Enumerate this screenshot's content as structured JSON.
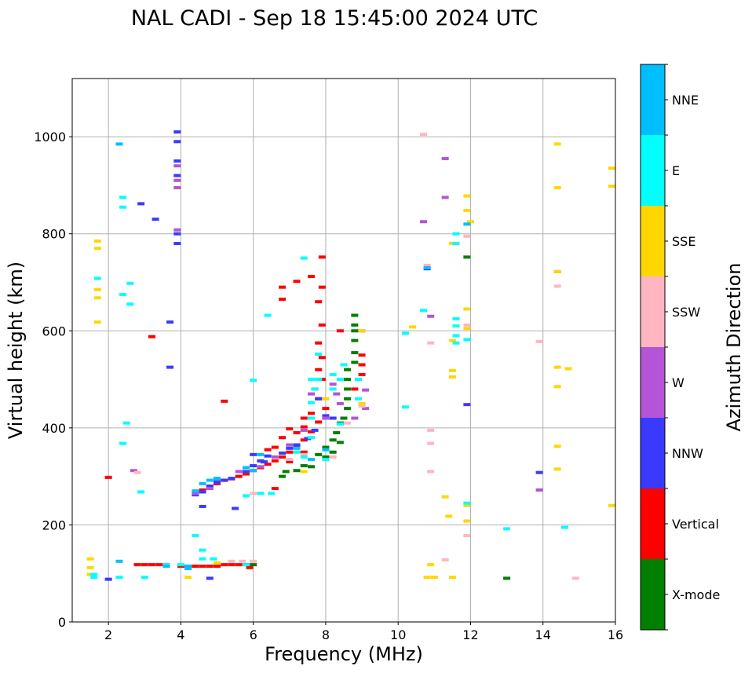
{
  "chart_data": {
    "type": "scatter",
    "title": "NAL CADI - Sep 18 15:45:00 2024 UTC",
    "xlabel": "Frequency (MHz)",
    "ylabel": "Virtual height (km)",
    "xlim": [
      1,
      16
    ],
    "ylim": [
      0,
      1120
    ],
    "xticks": [
      2,
      4,
      6,
      8,
      10,
      12,
      14,
      16
    ],
    "yticks": [
      0,
      200,
      400,
      600,
      800,
      1000
    ],
    "grid": true,
    "colorbar": {
      "title": "Azimuth Direction",
      "categories": [
        {
          "name": "X-mode",
          "color": "#008000"
        },
        {
          "name": "Vertical",
          "color": "#ff0000"
        },
        {
          "name": "NNW",
          "color": "#3a3aff"
        },
        {
          "name": "W",
          "color": "#b355d6"
        },
        {
          "name": "SSW",
          "color": "#ffb6c1"
        },
        {
          "name": "SSE",
          "color": "#ffd700"
        },
        {
          "name": "E",
          "color": "#00ffff"
        },
        {
          "name": "NNE",
          "color": "#00bfff"
        }
      ]
    },
    "series": [
      {
        "name": "X-mode",
        "points": [
          [
            5.8,
            118
          ],
          [
            6.0,
            118
          ],
          [
            7.2,
            312
          ],
          [
            7.4,
            322
          ],
          [
            7.6,
            335
          ],
          [
            7.8,
            345
          ],
          [
            8.0,
            360
          ],
          [
            8.2,
            375
          ],
          [
            8.3,
            390
          ],
          [
            8.2,
            350
          ],
          [
            8.4,
            410
          ],
          [
            8.5,
            420
          ],
          [
            8.6,
            440
          ],
          [
            8.6,
            460
          ],
          [
            8.6,
            480
          ],
          [
            8.6,
            500
          ],
          [
            8.6,
            520
          ],
          [
            8.8,
            535
          ],
          [
            8.8,
            555
          ],
          [
            8.8,
            580
          ],
          [
            8.8,
            600
          ],
          [
            8.8,
            612
          ],
          [
            8.8,
            632
          ],
          [
            8.4,
            370
          ],
          [
            8.0,
            340
          ],
          [
            7.6,
            320
          ],
          [
            6.8,
            300
          ],
          [
            6.9,
            310
          ],
          [
            11.9,
            752
          ],
          [
            13.0,
            90
          ]
        ]
      },
      {
        "name": "Vertical",
        "points": [
          [
            2.8,
            118
          ],
          [
            3.0,
            118
          ],
          [
            3.2,
            118
          ],
          [
            3.4,
            118
          ],
          [
            3.6,
            118
          ],
          [
            4.0,
            115
          ],
          [
            4.2,
            115
          ],
          [
            4.4,
            115
          ],
          [
            4.6,
            115
          ],
          [
            4.8,
            115
          ],
          [
            5.0,
            115
          ],
          [
            5.2,
            118
          ],
          [
            5.4,
            118
          ],
          [
            5.6,
            118
          ],
          [
            5.9,
            112
          ],
          [
            4.6,
            272
          ],
          [
            4.8,
            278
          ],
          [
            5.0,
            285
          ],
          [
            5.2,
            292
          ],
          [
            5.4,
            295
          ],
          [
            5.6,
            300
          ],
          [
            5.8,
            305
          ],
          [
            6.0,
            312
          ],
          [
            6.2,
            318
          ],
          [
            6.4,
            325
          ],
          [
            6.6,
            332
          ],
          [
            6.8,
            340
          ],
          [
            7.0,
            350
          ],
          [
            7.2,
            362
          ],
          [
            7.4,
            375
          ],
          [
            7.6,
            392
          ],
          [
            7.8,
            412
          ],
          [
            8.0,
            440
          ],
          [
            7.8,
            460
          ],
          [
            7.7,
            480
          ],
          [
            7.9,
            500
          ],
          [
            7.8,
            520
          ],
          [
            7.9,
            545
          ],
          [
            7.8,
            575
          ],
          [
            7.9,
            612
          ],
          [
            7.8,
            660
          ],
          [
            7.9,
            690
          ],
          [
            7.6,
            712
          ],
          [
            7.2,
            702
          ],
          [
            6.8,
            690
          ],
          [
            6.8,
            665
          ],
          [
            7.9,
            752
          ],
          [
            6.6,
            275
          ],
          [
            7.0,
            330
          ],
          [
            7.4,
            350
          ],
          [
            7.2,
            390
          ],
          [
            7.4,
            420
          ],
          [
            9.0,
            550
          ],
          [
            9.0,
            530
          ],
          [
            9.0,
            510
          ],
          [
            8.8,
            480
          ],
          [
            8.4,
            600
          ],
          [
            3.2,
            588
          ],
          [
            5.2,
            455
          ],
          [
            6.4,
            355
          ],
          [
            6.6,
            360
          ],
          [
            6.8,
            380
          ],
          [
            7.0,
            398
          ],
          [
            7.4,
            402
          ],
          [
            7.6,
            430
          ],
          [
            2.0,
            298
          ]
        ]
      },
      {
        "name": "NNW",
        "points": [
          [
            3.9,
            1010
          ],
          [
            3.9,
            990
          ],
          [
            3.9,
            950
          ],
          [
            3.9,
            920
          ],
          [
            3.9,
            800
          ],
          [
            3.9,
            780
          ],
          [
            3.7,
            618
          ],
          [
            3.7,
            525
          ],
          [
            4.4,
            262
          ],
          [
            4.6,
            268
          ],
          [
            4.8,
            280
          ],
          [
            5.0,
            288
          ],
          [
            5.2,
            292
          ],
          [
            5.4,
            296
          ],
          [
            5.8,
            310
          ],
          [
            6.0,
            322
          ],
          [
            6.2,
            332
          ],
          [
            6.4,
            342
          ],
          [
            6.8,
            348
          ],
          [
            7.0,
            358
          ],
          [
            7.2,
            365
          ],
          [
            7.5,
            378
          ],
          [
            7.7,
            395
          ],
          [
            8.2,
            420
          ],
          [
            8.0,
            425
          ],
          [
            6.0,
            345
          ],
          [
            4.6,
            238
          ],
          [
            5.5,
            234
          ],
          [
            11.9,
            448
          ],
          [
            13.9,
            308
          ],
          [
            10.8,
            728
          ],
          [
            3.3,
            830
          ],
          [
            2.9,
            862
          ],
          [
            4.8,
            90
          ],
          [
            2.0,
            88
          ],
          [
            5.0,
            295
          ],
          [
            7.8,
            460
          ],
          [
            6.3,
            330
          ]
        ]
      },
      {
        "name": "W",
        "points": [
          [
            3.9,
            940
          ],
          [
            3.9,
            910
          ],
          [
            3.9,
            895
          ],
          [
            3.9,
            808
          ],
          [
            4.4,
            265
          ],
          [
            4.8,
            275
          ],
          [
            5.6,
            310
          ],
          [
            6.2,
            320
          ],
          [
            6.6,
            340
          ],
          [
            7.0,
            365
          ],
          [
            7.4,
            395
          ],
          [
            7.6,
            470
          ],
          [
            8.0,
            420
          ],
          [
            8.3,
            470
          ],
          [
            8.2,
            490
          ],
          [
            9.1,
            478
          ],
          [
            9.0,
            600
          ],
          [
            10.7,
            825
          ],
          [
            10.9,
            630
          ],
          [
            11.3,
            875
          ],
          [
            11.3,
            955
          ],
          [
            13.9,
            272
          ],
          [
            14.4,
            722
          ],
          [
            9.1,
            440
          ],
          [
            2.7,
            312
          ],
          [
            8.4,
            450
          ],
          [
            8.8,
            420
          ]
        ]
      },
      {
        "name": "SSW",
        "points": [
          [
            5.4,
            125
          ],
          [
            5.7,
            125
          ],
          [
            6.0,
            125
          ],
          [
            7.4,
            345
          ],
          [
            7.0,
            335
          ],
          [
            8.2,
            340
          ],
          [
            8.6,
            410
          ],
          [
            9.0,
            445
          ],
          [
            10.7,
            1005
          ],
          [
            10.8,
            735
          ],
          [
            10.9,
            575
          ],
          [
            10.9,
            395
          ],
          [
            10.9,
            368
          ],
          [
            10.9,
            310
          ],
          [
            11.3,
            128
          ],
          [
            11.9,
            178
          ],
          [
            11.9,
            795
          ],
          [
            13.9,
            578
          ],
          [
            14.4,
            692
          ],
          [
            14.9,
            90
          ],
          [
            11.9,
            612
          ],
          [
            2.8,
            308
          ],
          [
            6.0,
            265
          ]
        ]
      },
      {
        "name": "SSE",
        "points": [
          [
            1.5,
            130
          ],
          [
            1.5,
            112
          ],
          [
            1.5,
            98
          ],
          [
            1.7,
            618
          ],
          [
            1.7,
            668
          ],
          [
            1.7,
            685
          ],
          [
            1.7,
            770
          ],
          [
            1.7,
            785
          ],
          [
            4.2,
            92
          ],
          [
            5.0,
            122
          ],
          [
            7.6,
            420
          ],
          [
            8.0,
            460
          ],
          [
            9.0,
            600
          ],
          [
            9.0,
            450
          ],
          [
            10.4,
            608
          ],
          [
            10.8,
            92
          ],
          [
            11.0,
            92
          ],
          [
            10.9,
            118
          ],
          [
            11.3,
            258
          ],
          [
            11.4,
            218
          ],
          [
            11.5,
            92
          ],
          [
            11.5,
            518
          ],
          [
            11.5,
            505
          ],
          [
            11.5,
            780
          ],
          [
            11.6,
            625
          ],
          [
            11.5,
            580
          ],
          [
            11.9,
            645
          ],
          [
            11.9,
            605
          ],
          [
            11.9,
            208
          ],
          [
            11.9,
            240
          ],
          [
            11.9,
            848
          ],
          [
            11.9,
            878
          ],
          [
            12.0,
            825
          ],
          [
            14.4,
            985
          ],
          [
            14.4,
            895
          ],
          [
            14.4,
            722
          ],
          [
            14.4,
            525
          ],
          [
            14.4,
            485
          ],
          [
            14.4,
            362
          ],
          [
            14.4,
            315
          ],
          [
            15.9,
            935
          ],
          [
            15.9,
            898
          ],
          [
            15.9,
            240
          ],
          [
            14.7,
            522
          ],
          [
            7.4,
            310
          ]
        ]
      },
      {
        "name": "E",
        "points": [
          [
            1.6,
            98
          ],
          [
            1.6,
            92
          ],
          [
            1.7,
            708
          ],
          [
            2.4,
            875
          ],
          [
            2.4,
            855
          ],
          [
            2.4,
            675
          ],
          [
            2.4,
            368
          ],
          [
            2.6,
            698
          ],
          [
            2.6,
            655
          ],
          [
            2.3,
            92
          ],
          [
            2.5,
            410
          ],
          [
            2.9,
            268
          ],
          [
            3.0,
            92
          ],
          [
            3.6,
            118
          ],
          [
            4.0,
            118
          ],
          [
            4.4,
            178
          ],
          [
            4.6,
            148
          ],
          [
            4.6,
            130
          ],
          [
            4.9,
            130
          ],
          [
            5.8,
            118
          ],
          [
            5.8,
            260
          ],
          [
            6.0,
            498
          ],
          [
            6.4,
            632
          ],
          [
            6.2,
            265
          ],
          [
            6.5,
            265
          ],
          [
            7.4,
            340
          ],
          [
            7.2,
            350
          ],
          [
            7.6,
            380
          ],
          [
            7.6,
            420
          ],
          [
            7.6,
            452
          ],
          [
            7.4,
            750
          ],
          [
            7.8,
            552
          ],
          [
            7.8,
            500
          ],
          [
            7.6,
            500
          ],
          [
            7.7,
            480
          ],
          [
            8.2,
            480
          ],
          [
            8.2,
            510
          ],
          [
            8.4,
            500
          ],
          [
            8.5,
            530
          ],
          [
            8.4,
            408
          ],
          [
            8.0,
            335
          ],
          [
            10.2,
            595
          ],
          [
            10.2,
            443
          ],
          [
            10.7,
            642
          ],
          [
            11.6,
            800
          ],
          [
            11.6,
            780
          ],
          [
            11.6,
            625
          ],
          [
            11.6,
            610
          ],
          [
            11.6,
            590
          ],
          [
            11.6,
            575
          ],
          [
            11.9,
            582
          ],
          [
            11.9,
            245
          ],
          [
            13.0,
            192
          ],
          [
            14.6,
            195
          ],
          [
            8.9,
            460
          ],
          [
            8.9,
            500
          ]
        ]
      },
      {
        "name": "NNE",
        "points": [
          [
            2.3,
            985
          ],
          [
            2.3,
            125
          ],
          [
            3.6,
            115
          ],
          [
            4.2,
            115
          ],
          [
            4.4,
            270
          ],
          [
            4.6,
            285
          ],
          [
            4.8,
            292
          ],
          [
            5.0,
            296
          ],
          [
            5.8,
            318
          ],
          [
            6.0,
            312
          ],
          [
            6.2,
            345
          ],
          [
            7.2,
            358
          ],
          [
            7.6,
            335
          ],
          [
            8.0,
            355
          ],
          [
            10.8,
            730
          ],
          [
            11.9,
            820
          ],
          [
            4.2,
            110
          ]
        ]
      }
    ]
  }
}
